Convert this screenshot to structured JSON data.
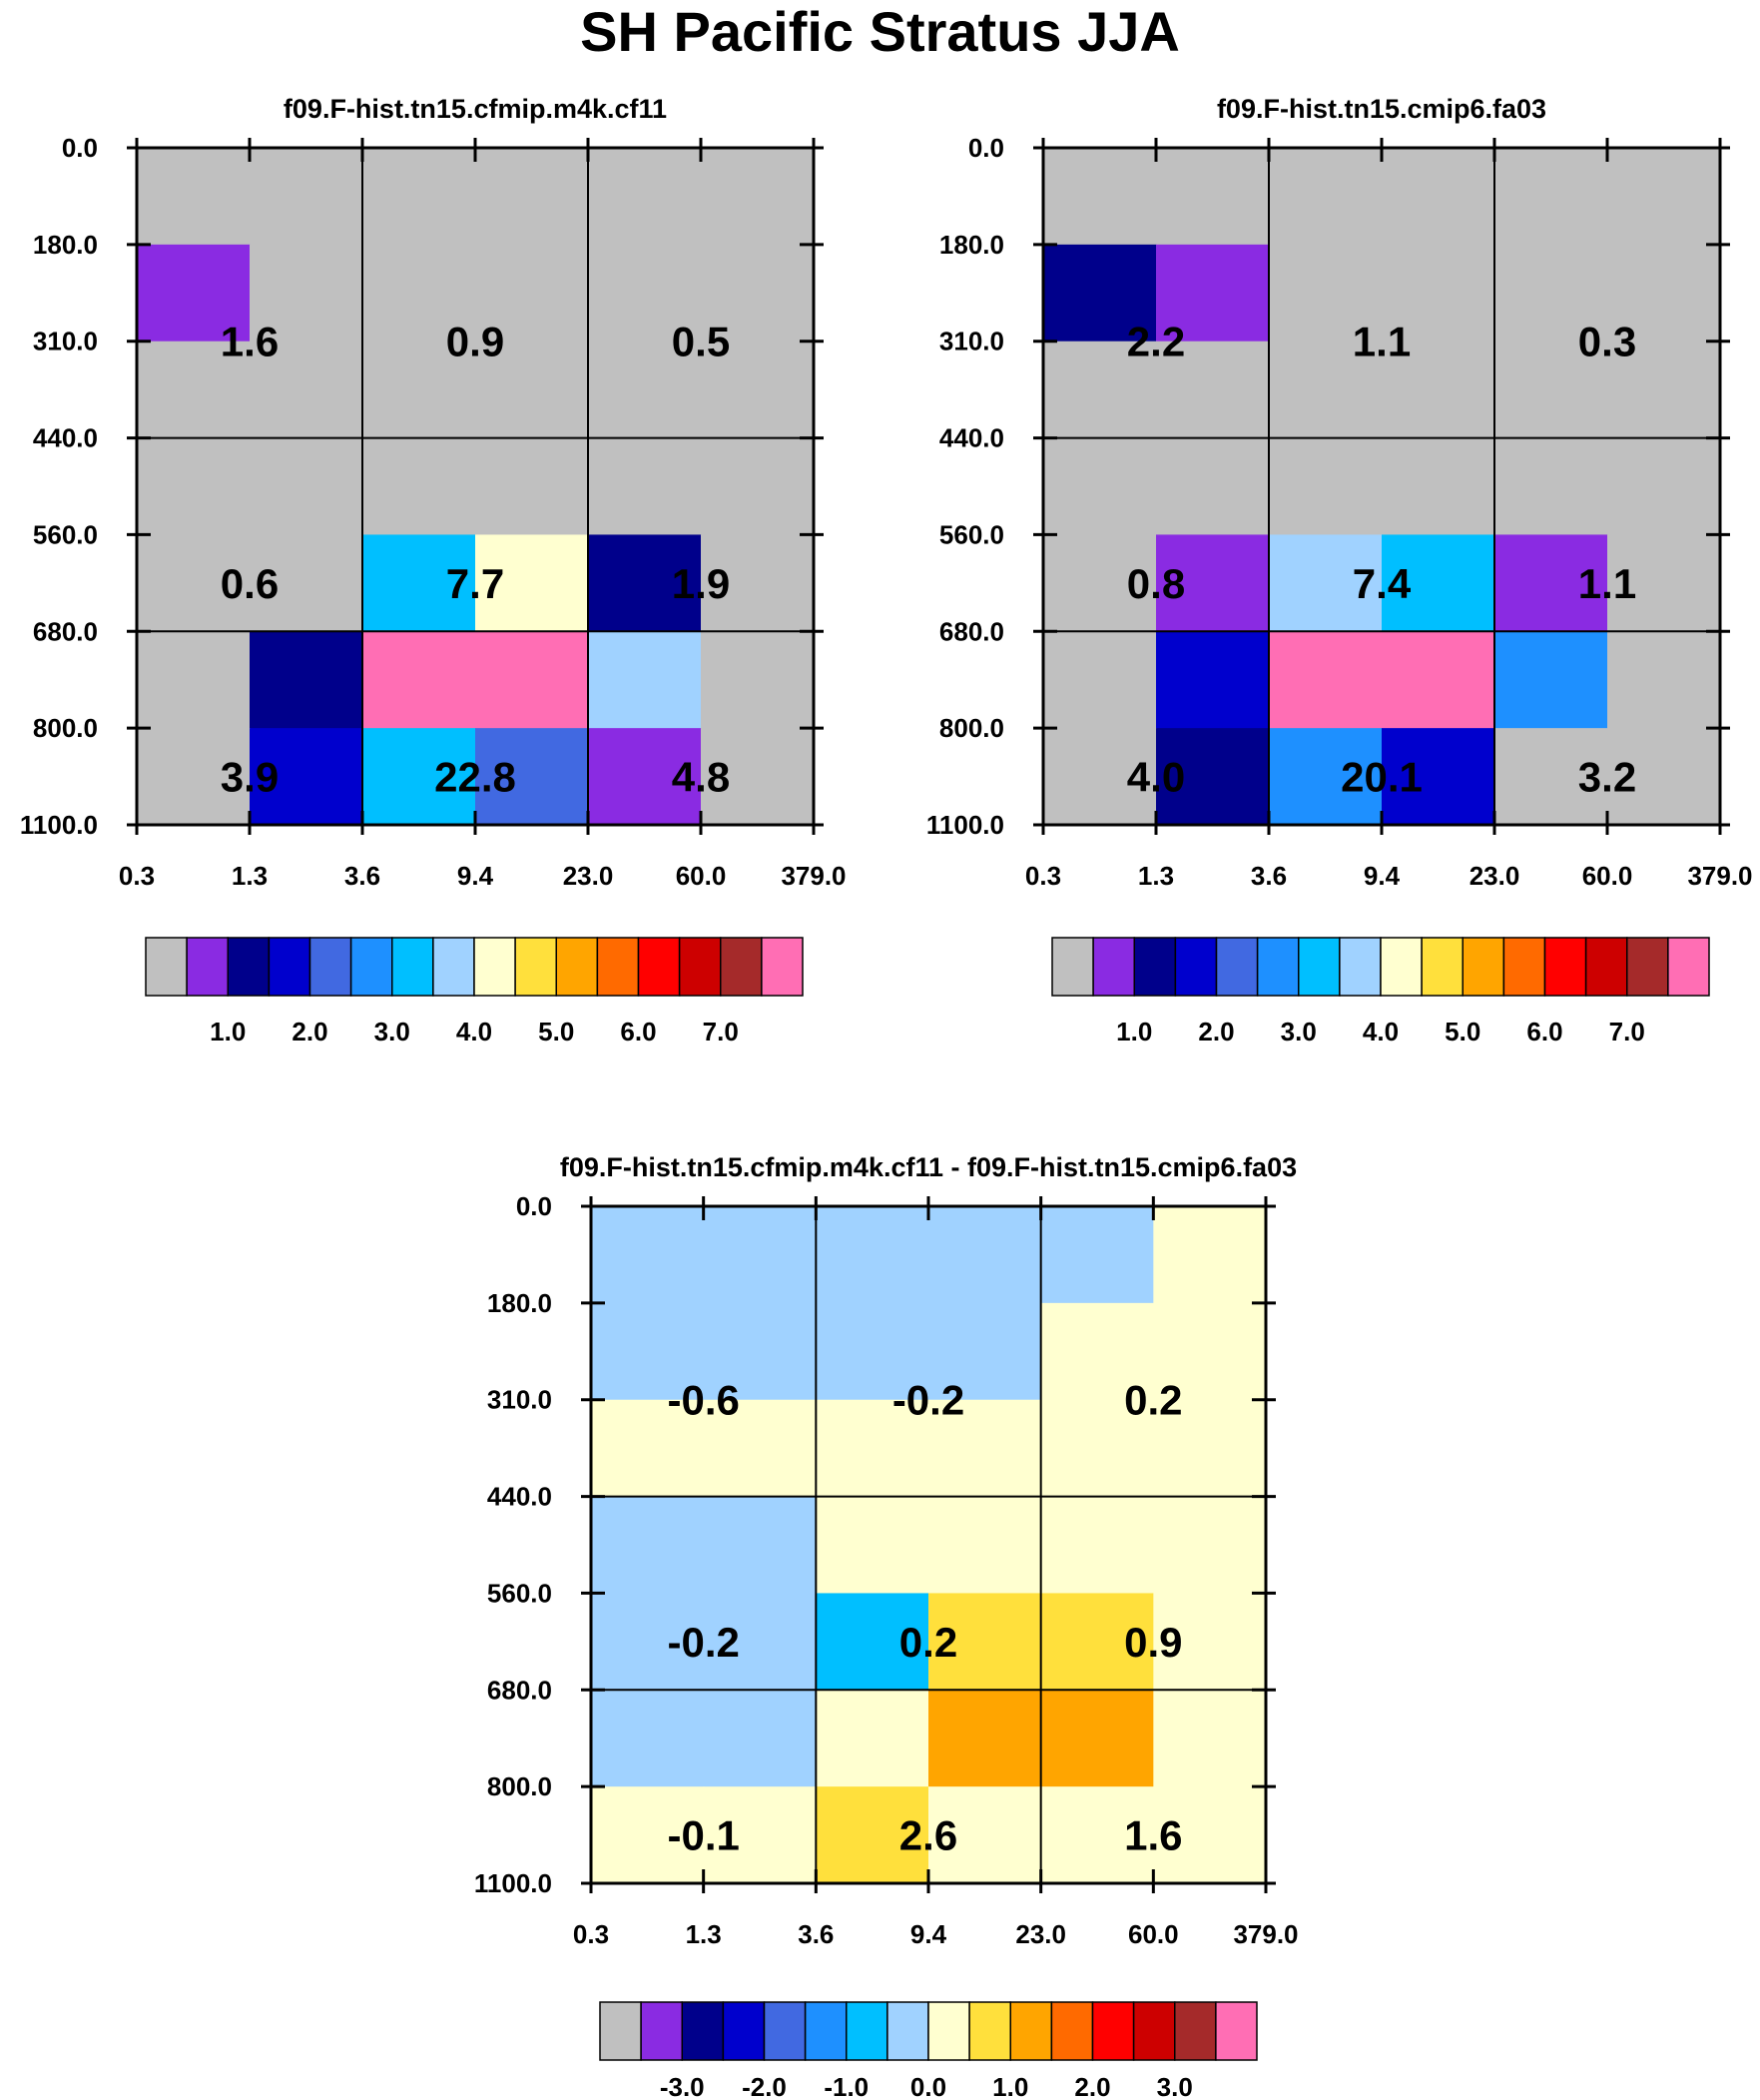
{
  "title": "SH Pacific Stratus JJA",
  "colors": {
    "palette": [
      "#c0c0c0",
      "#8a2be2",
      "#00008b",
      "#0000cd",
      "#4169e1",
      "#1e90ff",
      "#00bfff",
      "#a0d2ff",
      "#ffffd0",
      "#ffe03c",
      "#ffa500",
      "#ff6a00",
      "#ff0000",
      "#cd0000",
      "#a52a2a",
      "#ff6eb4"
    ],
    "missing": "#c0c0c0",
    "grid": "#000000"
  },
  "chart_data": [
    {
      "type": "heatmap",
      "title": "f09.F-hist.tn15.cfmip.m4k.cf11",
      "x_ticks": [
        "0.3",
        "1.3",
        "3.6",
        "9.4",
        "23.0",
        "60.0",
        "379.0"
      ],
      "y_ticks": [
        "0.0",
        "180.0",
        "310.0",
        "440.0",
        "560.0",
        "680.0",
        "800.0",
        "1100.0"
      ],
      "cells": [
        [
          0,
          0,
          0,
          0,
          0,
          0
        ],
        [
          1,
          0,
          0,
          0,
          0,
          0
        ],
        [
          0,
          0,
          0,
          0,
          0,
          0
        ],
        [
          0,
          0,
          0,
          0,
          0,
          0
        ],
        [
          0,
          0,
          6,
          8,
          2,
          0
        ],
        [
          0,
          2,
          15,
          15,
          7,
          0
        ],
        [
          0,
          3,
          6,
          4,
          1,
          0
        ]
      ],
      "labels": [
        {
          "text": "1.6",
          "row": 1.5,
          "col": 1
        },
        {
          "text": "0.9",
          "row": 1.5,
          "col": 3
        },
        {
          "text": "0.5",
          "row": 1.5,
          "col": 5
        },
        {
          "text": "0.6",
          "row": 4,
          "col": 1
        },
        {
          "text": "7.7",
          "row": 4,
          "col": 3
        },
        {
          "text": "1.9",
          "row": 4,
          "col": 5
        },
        {
          "text": "3.9",
          "row": 6,
          "col": 1
        },
        {
          "text": "22.8",
          "row": 6,
          "col": 3
        },
        {
          "text": "4.8",
          "row": 6,
          "col": 5
        }
      ],
      "colorbar": {
        "labels": [
          "1.0",
          "2.0",
          "3.0",
          "4.0",
          "5.0",
          "6.0",
          "7.0"
        ],
        "first_label_box": 2,
        "box_count": 16
      }
    },
    {
      "type": "heatmap",
      "title": "f09.F-hist.tn15.cmip6.fa03",
      "x_ticks": [
        "0.3",
        "1.3",
        "3.6",
        "9.4",
        "23.0",
        "60.0",
        "379.0"
      ],
      "y_ticks": [
        "0.0",
        "180.0",
        "310.0",
        "440.0",
        "560.0",
        "680.0",
        "800.0",
        "1100.0"
      ],
      "cells": [
        [
          0,
          0,
          0,
          0,
          0,
          0
        ],
        [
          2,
          1,
          0,
          0,
          0,
          0
        ],
        [
          0,
          0,
          0,
          0,
          0,
          0
        ],
        [
          0,
          0,
          0,
          0,
          0,
          0
        ],
        [
          0,
          1,
          7,
          6,
          1,
          0
        ],
        [
          0,
          3,
          15,
          15,
          5,
          0
        ],
        [
          0,
          2,
          5,
          3,
          0,
          0
        ]
      ],
      "labels": [
        {
          "text": "2.2",
          "row": 1.5,
          "col": 1
        },
        {
          "text": "1.1",
          "row": 1.5,
          "col": 3
        },
        {
          "text": "0.3",
          "row": 1.5,
          "col": 5
        },
        {
          "text": "0.8",
          "row": 4,
          "col": 1
        },
        {
          "text": "7.4",
          "row": 4,
          "col": 3
        },
        {
          "text": "1.1",
          "row": 4,
          "col": 5
        },
        {
          "text": "4.0",
          "row": 6,
          "col": 1
        },
        {
          "text": "20.1",
          "row": 6,
          "col": 3
        },
        {
          "text": "3.2",
          "row": 6,
          "col": 5
        }
      ],
      "colorbar": {
        "labels": [
          "1.0",
          "2.0",
          "3.0",
          "4.0",
          "5.0",
          "6.0",
          "7.0"
        ],
        "first_label_box": 2,
        "box_count": 16
      }
    },
    {
      "type": "heatmap",
      "title": "f09.F-hist.tn15.cfmip.m4k.cf11 - f09.F-hist.tn15.cmip6.fa03",
      "x_ticks": [
        "0.3",
        "1.3",
        "3.6",
        "9.4",
        "23.0",
        "60.0",
        "379.0"
      ],
      "y_ticks": [
        "0.0",
        "180.0",
        "310.0",
        "440.0",
        "560.0",
        "680.0",
        "800.0",
        "1100.0"
      ],
      "cells": [
        [
          7,
          7,
          7,
          7,
          7,
          8
        ],
        [
          7,
          7,
          7,
          7,
          8,
          8
        ],
        [
          8,
          8,
          8,
          8,
          8,
          8
        ],
        [
          7,
          7,
          8,
          8,
          8,
          8
        ],
        [
          7,
          7,
          6,
          9,
          9,
          8
        ],
        [
          7,
          7,
          8,
          10,
          10,
          8
        ],
        [
          8,
          8,
          9,
          8,
          8,
          8
        ]
      ],
      "labels": [
        {
          "text": "-0.6",
          "row": 1.5,
          "col": 1
        },
        {
          "text": "-0.2",
          "row": 1.5,
          "col": 3
        },
        {
          "text": "0.2",
          "row": 1.5,
          "col": 5
        },
        {
          "text": "-0.2",
          "row": 4,
          "col": 1
        },
        {
          "text": "0.2",
          "row": 4,
          "col": 3
        },
        {
          "text": "0.9",
          "row": 4,
          "col": 5
        },
        {
          "text": "-0.1",
          "row": 6,
          "col": 1
        },
        {
          "text": "2.6",
          "row": 6,
          "col": 3
        },
        {
          "text": "1.6",
          "row": 6,
          "col": 5
        }
      ],
      "colorbar": {
        "labels": [
          "-3.0",
          "-2.0",
          "-1.0",
          "0.0",
          "1.0",
          "2.0",
          "3.0"
        ],
        "first_label_box": 2,
        "box_count": 16
      }
    }
  ]
}
